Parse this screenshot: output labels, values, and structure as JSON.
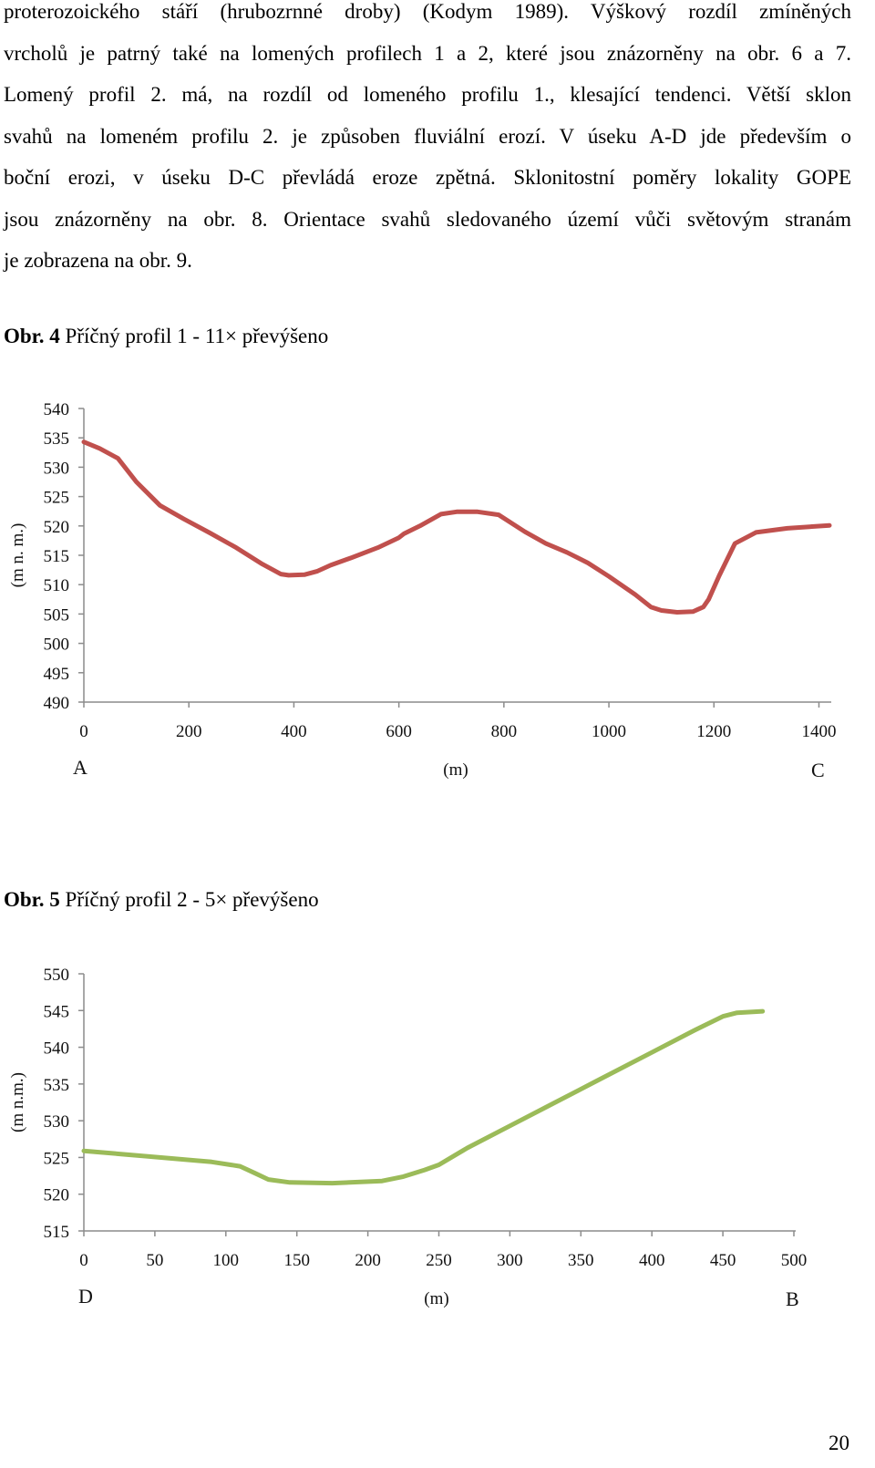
{
  "paragraph_lines": [
    "proterozoického stáří (hrubozrnné droby) (Kodym 1989). Výškový rozdíl zmíněných",
    "vrcholů je patrný také na lomených profilech 1 a 2, které jsou znázorněny na obr. 6 a 7.",
    "Lomený profil 2. má, na rozdíl od lomeného profilu 1., klesající tendenci. Větší sklon",
    "svahů na lomeném profilu 2. je způsoben fluviální erozí. V úseku A-D jde především o",
    "boční erozi, v úseku D-C převládá eroze zpětná. Sklonitostní poměry lokality GOPE",
    "jsou znázorněny na obr. 8. Orientace svahů sledovaného území vůči světovým stranám",
    "je zobrazena na obr. 9."
  ],
  "figure4": {
    "label": "Obr. 4",
    "caption": "Příčný profil 1 - 11× převýšeno"
  },
  "figure5": {
    "label": "Obr. 5",
    "caption": "Příčný profil 2 - 5× převýšeno"
  },
  "page_number": "20",
  "chart_data": [
    {
      "type": "line",
      "title": "",
      "xlabel": "(m)",
      "ylabel": "(m n. m.)",
      "xlim": [
        0,
        1420
      ],
      "ylim": [
        490,
        540
      ],
      "x_ticks": [
        "0",
        "200",
        "400",
        "600",
        "800",
        "1000",
        "1200",
        "1400"
      ],
      "y_ticks": [
        "540",
        "535",
        "530",
        "525",
        "520",
        "515",
        "510",
        "505",
        "500",
        "495",
        "490"
      ],
      "start_label": "A",
      "end_label": "C",
      "grid": false,
      "color": "#c0504d",
      "x": [
        0,
        30,
        65,
        100,
        145,
        190,
        240,
        290,
        340,
        375,
        390,
        420,
        445,
        470,
        510,
        560,
        600,
        610,
        640,
        680,
        710,
        750,
        790,
        840,
        880,
        920,
        960,
        1000,
        1050,
        1080,
        1100,
        1130,
        1160,
        1180,
        1190,
        1210,
        1240,
        1280,
        1340,
        1420
      ],
      "y": [
        534.3,
        533.2,
        531.5,
        527.5,
        523.5,
        521.2,
        518.8,
        516.3,
        513.5,
        511.8,
        511.6,
        511.7,
        512.3,
        513.3,
        514.6,
        516.3,
        518.0,
        518.7,
        520.0,
        522.0,
        522.4,
        522.4,
        521.9,
        519.0,
        517.0,
        515.5,
        513.7,
        511.4,
        508.3,
        506.2,
        505.6,
        505.3,
        505.4,
        506.2,
        507.5,
        511.5,
        517.0,
        518.9,
        519.6,
        520.1
      ]
    },
    {
      "type": "line",
      "title": "",
      "xlabel": "(m)",
      "ylabel": "(m n.m.)",
      "xlim": [
        0,
        500
      ],
      "ylim": [
        515,
        550
      ],
      "x_ticks": [
        "0",
        "50",
        "100",
        "150",
        "200",
        "250",
        "300",
        "350",
        "400",
        "450",
        "500"
      ],
      "y_ticks": [
        "550",
        "545",
        "540",
        "535",
        "530",
        "525",
        "520",
        "515"
      ],
      "start_label": "D",
      "end_label": "B",
      "grid": false,
      "color": "#9bbb59",
      "x": [
        0,
        30,
        60,
        90,
        110,
        120,
        130,
        145,
        175,
        210,
        225,
        240,
        250,
        270,
        300,
        330,
        360,
        400,
        430,
        450,
        460,
        478
      ],
      "y": [
        525.9,
        525.4,
        524.9,
        524.4,
        523.8,
        522.9,
        522.0,
        521.6,
        521.5,
        521.8,
        522.4,
        523.3,
        524.0,
        526.3,
        529.3,
        532.3,
        535.3,
        539.3,
        542.3,
        544.2,
        544.7,
        544.9
      ]
    }
  ]
}
